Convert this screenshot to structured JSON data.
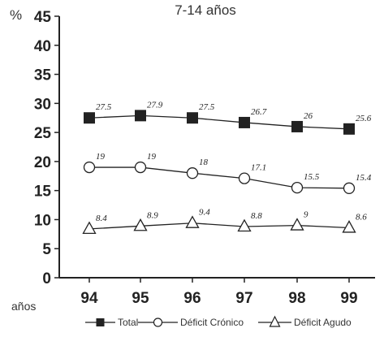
{
  "chart_data": {
    "type": "line",
    "title": "7-14 años",
    "ylabel": "%",
    "xlabel": "años",
    "categories": [
      "94",
      "95",
      "96",
      "97",
      "98",
      "99"
    ],
    "ylim": [
      0,
      45
    ],
    "yticks": [
      0,
      5,
      10,
      15,
      20,
      25,
      30,
      35,
      40,
      45
    ],
    "grid": false,
    "legend_position": "bottom",
    "series": [
      {
        "name": "Total",
        "marker": "filled-square",
        "values": [
          27.5,
          27.9,
          27.5,
          26.7,
          26,
          25.6
        ],
        "labels": [
          "27.5",
          "27.9",
          "27.5",
          "26.7",
          "26",
          "25.6"
        ]
      },
      {
        "name": "Déficit Crónico",
        "marker": "open-circle",
        "values": [
          19,
          19,
          18,
          17.1,
          15.5,
          15.4
        ],
        "labels": [
          "19",
          "19",
          "18",
          "17.1",
          "15.5",
          "15.4"
        ]
      },
      {
        "name": "Déficit Agudo",
        "marker": "open-triangle",
        "values": [
          8.4,
          8.9,
          9.4,
          8.8,
          9,
          8.6
        ],
        "labels": [
          "8.4",
          "8.9",
          "9.4",
          "8.8",
          "9",
          "8.6"
        ]
      }
    ],
    "line_color": "#222222"
  }
}
